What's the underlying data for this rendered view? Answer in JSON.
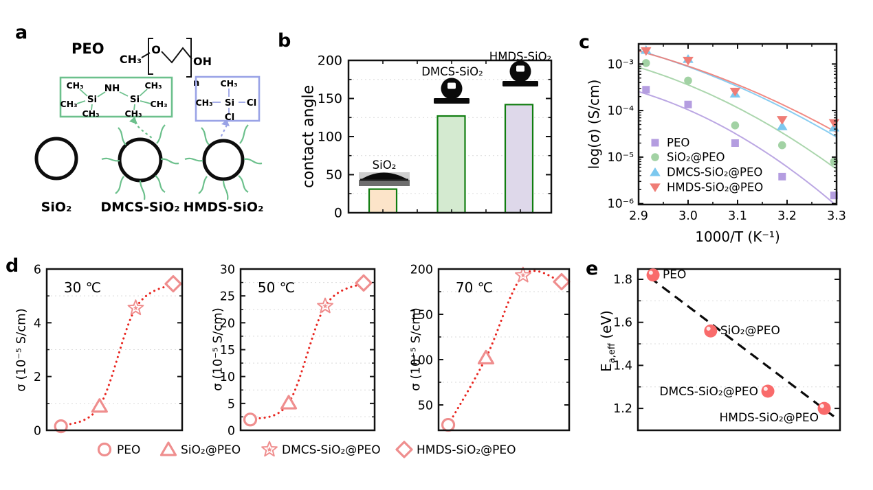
{
  "panel_labels": {
    "a": "a",
    "b": "b",
    "c": "c",
    "d": "d",
    "e": "e"
  },
  "panel_a": {
    "polymer_name": "PEO",
    "atoms": {
      "ch3": "CH₃",
      "o": "O",
      "oh": "OH",
      "n": "n",
      "si": "Si",
      "nh": "NH",
      "cl": "Cl"
    },
    "silane_green_color": "#6cc08c",
    "silane_blue_color": "#9aa3e6",
    "particles": [
      {
        "label": "SiO₂"
      },
      {
        "label": "DMCS-SiO₂"
      },
      {
        "label": "HMDS-SiO₂"
      }
    ]
  },
  "panel_d_legend": [
    {
      "marker": "circle-open",
      "label": "PEO"
    },
    {
      "marker": "triangle-open",
      "label": "SiO₂@PEO"
    },
    {
      "marker": "star",
      "label": "DMCS-SiO₂@PEO"
    },
    {
      "marker": "diamond-open",
      "label": "HMDS-SiO₂@PEO"
    }
  ],
  "chart_data": [
    {
      "id": "b",
      "type": "bar",
      "ylabel": "contact angle",
      "ylim": [
        0,
        200
      ],
      "yticks": [
        0,
        50,
        100,
        150,
        200
      ],
      "gridlines": [
        25,
        75,
        125,
        175
      ],
      "categories": [
        "SiO₂",
        "DMCS-SiO₂",
        "HMDS-SiO₂"
      ],
      "values": [
        31,
        127,
        142
      ],
      "bar_fills": [
        "#fce4c9",
        "#d4ead0",
        "#ded8ea"
      ],
      "bar_border": "#107d10",
      "annotations": [
        "sessile-droplet-photo",
        "round-droplet-icon",
        "round-droplet-icon"
      ]
    },
    {
      "id": "c",
      "type": "scatter-log",
      "xlabel": "1000/T (K⁻¹)",
      "ylabel": "log(σ) (S/cm)",
      "xlim": [
        2.9,
        3.3
      ],
      "xticks": [
        2.9,
        3.0,
        3.1,
        3.2,
        3.3
      ],
      "x_minor_step": 0.05,
      "ytick_labels": [
        "10⁻³",
        "10⁻⁴",
        "10⁻⁵",
        "10⁻⁶"
      ],
      "ytick_exps": [
        -3,
        -4,
        -5,
        -6
      ],
      "legend_position": "lower-left",
      "x": [
        2.915,
        3.0,
        3.095,
        3.19,
        3.295
      ],
      "series": [
        {
          "name": "PEO",
          "marker": "square",
          "color": "#b49de0",
          "values": [
            0.00028,
            0.000135,
            2e-05,
            3.8e-06,
            1.5e-06
          ],
          "fit": [
            0.000255,
            3e-05,
            9e-07
          ]
        },
        {
          "name": "SiO₂@PEO",
          "marker": "circle",
          "color": "#a2d2a4",
          "values": [
            0.00105,
            0.00044,
            4.8e-05,
            1.8e-05,
            8e-06
          ],
          "fit": [
            0.00085,
            0.000115,
            5.5e-06
          ]
        },
        {
          "name": "DMCS-SiO₂@PEO",
          "marker": "triangle-up",
          "color": "#7cc8ef",
          "values": [
            0.002,
            0.00128,
            0.00023,
            4.6e-05,
            4.3e-05
          ],
          "fit": [
            0.00195,
            0.00033,
            2.7e-05
          ]
        },
        {
          "name": "HMDS-SiO₂@PEO",
          "marker": "triangle-down",
          "color": "#ef7d76",
          "values": [
            0.0019,
            0.00118,
            0.000255,
            6.3e-05,
            5.4e-05
          ],
          "fit": [
            0.0019,
            0.00036,
            3.4e-05
          ]
        }
      ]
    },
    {
      "id": "d30",
      "type": "scatter-dotted",
      "temp_label": "30 ℃",
      "ylabel": "σ (10⁻⁵ S/cm)",
      "ylim": [
        0,
        6
      ],
      "yticks": [
        0,
        2,
        4,
        6
      ],
      "gridlines": [
        1,
        3,
        5
      ],
      "categories": [
        "PEO",
        "SiO₂@PEO",
        "DMCS-SiO₂@PEO",
        "HMDS-SiO₂@PEO"
      ],
      "values": [
        0.15,
        0.9,
        4.55,
        5.45
      ],
      "marker_color": "#ef8e8e",
      "line_color": "#e8251f",
      "label_color": "#f28080"
    },
    {
      "id": "d50",
      "type": "scatter-dotted",
      "temp_label": "50 ℃",
      "ylabel": "σ (10⁻⁵ S/cm)",
      "ylim": [
        0,
        30
      ],
      "yticks": [
        0,
        5,
        10,
        15,
        20,
        25,
        30
      ],
      "gridlines": [
        2.5,
        7.5,
        12.5,
        17.5,
        22.5,
        27.5
      ],
      "categories": [
        "PEO",
        "SiO₂@PEO",
        "DMCS-SiO₂@PEO",
        "HMDS-SiO₂@PEO"
      ],
      "values": [
        2.0,
        5.1,
        23.1,
        27.4
      ],
      "marker_color": "#ef8e8e",
      "line_color": "#e8251f",
      "label_color": "#f28080"
    },
    {
      "id": "d70",
      "type": "scatter-dotted",
      "temp_label": "70 ℃",
      "ylabel": "σ (10⁻⁵ S/cm)",
      "ylim": [
        22,
        200
      ],
      "yticks": [
        50,
        100,
        150,
        200
      ],
      "gridlines": [
        75,
        125,
        175
      ],
      "categories": [
        "PEO",
        "SiO₂@PEO",
        "DMCS-SiO₂@PEO",
        "HMDS-SiO₂@PEO"
      ],
      "values": [
        28,
        102,
        193,
        186
      ],
      "marker_color": "#ef8e8e",
      "line_color": "#e8251f",
      "label_color": "#f28080"
    },
    {
      "id": "e",
      "type": "scatter-trend",
      "ylabel_main": "E",
      "ylabel_sub": "a,eff",
      "ylabel_unit": " (eV)",
      "ylim": [
        1.1,
        1.85
      ],
      "yticks": [
        1.2,
        1.4,
        1.6,
        1.8
      ],
      "gridlines": [
        1.3,
        1.5,
        1.7
      ],
      "points": [
        {
          "label": "PEO",
          "value": 1.82
        },
        {
          "label": "SiO₂@PEO",
          "value": 1.56
        },
        {
          "label": "DMCS-SiO₂@PEO",
          "value": 1.28
        },
        {
          "label": "HMDS-SiO₂@PEO",
          "value": 1.2
        }
      ],
      "trend_line": "dashed-black",
      "marker_color": "#f96b6b",
      "label_color": "#f5918c"
    }
  ]
}
